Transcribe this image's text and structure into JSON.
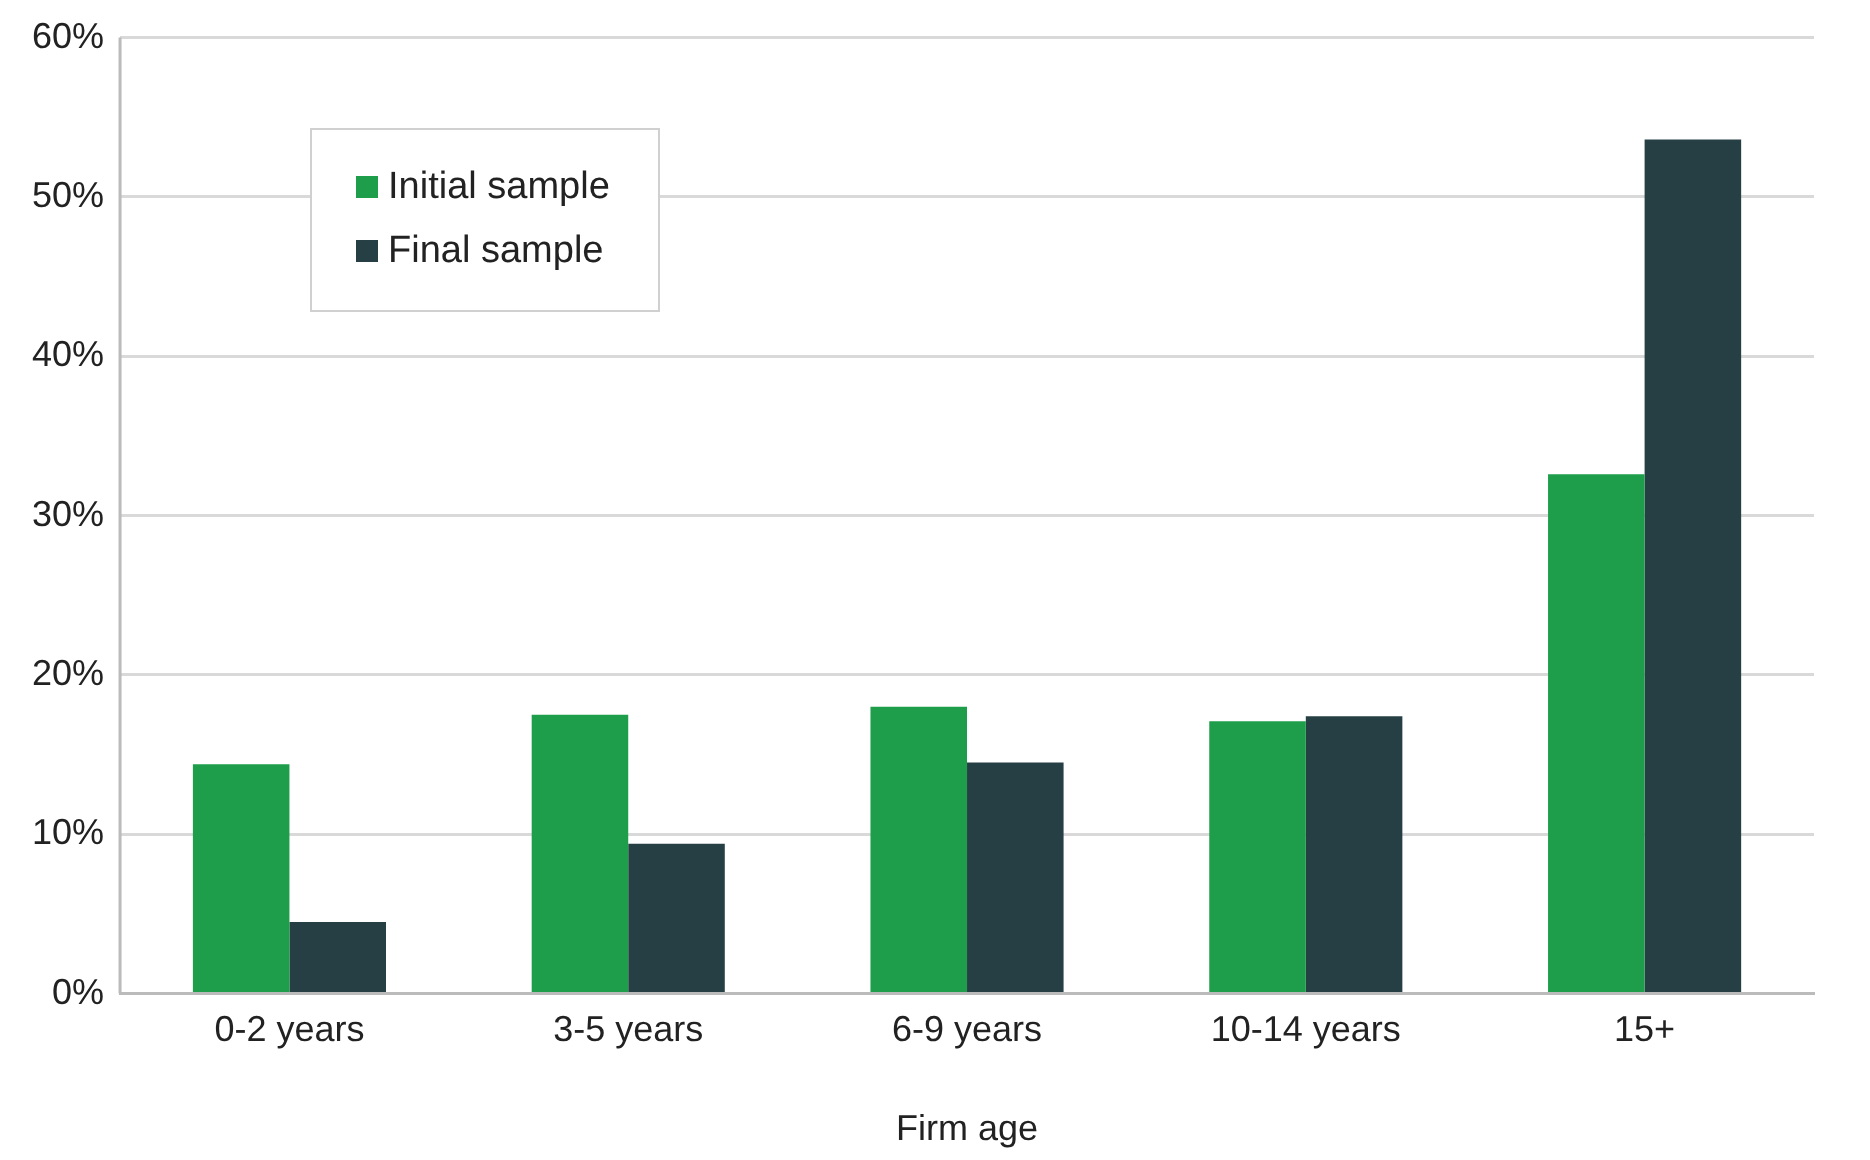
{
  "chart_data": {
    "type": "bar",
    "xlabel": "Firm age",
    "categories": [
      "0-2 years",
      "3-5 years",
      "6-9 years",
      "10-14 years",
      "15+"
    ],
    "series": [
      {
        "name": "Initial sample",
        "color": "#1e9e4a",
        "values": [
          14.4,
          17.5,
          18.0,
          17.1,
          32.6
        ]
      },
      {
        "name": "Final sample",
        "color": "#263f45",
        "values": [
          4.5,
          9.4,
          14.5,
          17.4,
          53.6
        ]
      }
    ],
    "ylim": [
      0,
      60
    ],
    "yticks": [
      {
        "value": 0,
        "label": "0%"
      },
      {
        "value": 10,
        "label": "10%"
      },
      {
        "value": 20,
        "label": "20%"
      },
      {
        "value": 30,
        "label": "30%"
      },
      {
        "value": 40,
        "label": "40%"
      },
      {
        "value": 50,
        "label": "50%"
      },
      {
        "value": 60,
        "label": "60%"
      }
    ],
    "grid": "y",
    "legend": "top left"
  }
}
